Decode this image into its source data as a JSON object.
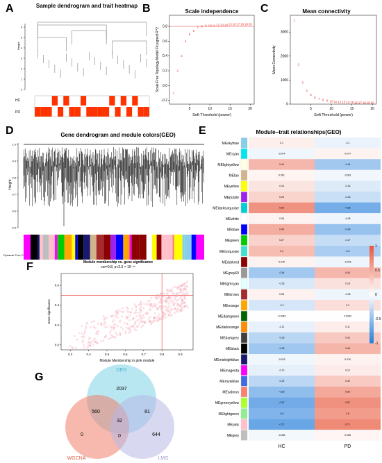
{
  "panels": {
    "A": {
      "label": "A",
      "title": "Sample dendrogram and trait heatmap",
      "ylabel": "Height",
      "yticks": [
        "0",
        "1",
        "2",
        "3",
        "4",
        "5",
        "6"
      ],
      "traits": [
        "HC",
        "PD"
      ],
      "trait_pattern_pd": [
        1,
        1,
        1,
        0,
        1,
        0,
        1,
        1,
        0,
        1,
        1,
        1,
        1,
        0,
        1,
        0,
        1,
        0,
        1,
        1
      ],
      "colors": {
        "trait_on": "#ff3300",
        "trait_off": "#ffffff"
      }
    },
    "B": {
      "label": "B",
      "title": "Scale independence",
      "xlabel": "Soft Threshold (power)",
      "ylabel": "Scale Free Topology Model Fit,signed R^2",
      "cutoff": 0.8
    },
    "C": {
      "label": "C",
      "title": "Mean connectivity",
      "xlabel": "Soft Threshold (power)",
      "ylabel": "Mean Connectivity"
    },
    "D": {
      "label": "D",
      "title": "Gene dendrogram and module colors(GEO)",
      "ylabel": "Height",
      "yticks": [
        "0.5",
        "0.6",
        "0.7",
        "0.8",
        "0.9",
        "1.0"
      ],
      "tree_cut_label": "Dynamic Tree Cut"
    },
    "E": {
      "label": "E",
      "title": "Module−trait relationships(GEO)",
      "columns": [
        "HC",
        "PD"
      ],
      "legend_ticks": [
        "1",
        "0.5",
        "0",
        "-0.5",
        "-1"
      ]
    },
    "F": {
      "label": "F",
      "title": "Module membership vs. gene significance",
      "subtitle": "cor=0.8, p<2.5 × 10⁻¹⁶",
      "xlabel": "Module Membership in pink module",
      "ylabel": "Gene significance"
    },
    "G": {
      "label": "G",
      "sets": [
        "DEG",
        "WGCNA",
        "LMG"
      ],
      "regions": {
        "deg_only": "2037",
        "deg_wgcna": "560",
        "deg_lmg": "81",
        "all_three": "32",
        "wgcna_only": "0",
        "wgcna_lmg": "0",
        "lmg_only": "644"
      },
      "colors": {
        "DEG": "#7fd3e6",
        "WGCNA": "#f0806a",
        "LMG": "#b8b8e6"
      }
    }
  },
  "chart_data": [
    {
      "type": "scatter",
      "panel": "B",
      "title": "Scale independence",
      "xlabel": "Soft Threshold (power)",
      "ylabel": "Scale Free Topology Model Fit,signed R^2",
      "x": [
        1,
        2,
        3,
        4,
        5,
        6,
        7,
        8,
        9,
        10,
        11,
        12,
        13,
        14,
        15,
        16,
        17,
        18,
        19,
        20
      ],
      "y": [
        -0.1,
        0.2,
        0.4,
        0.6,
        0.69,
        0.74,
        0.78,
        0.8,
        0.81,
        0.81,
        0.81,
        0.82,
        0.82,
        0.82,
        0.83,
        0.83,
        0.83,
        0.83,
        0.83,
        0.83
      ],
      "xticks": [
        "5",
        "10",
        "15",
        "20"
      ],
      "yticks": [
        "-0.2",
        "0.0",
        "0.2",
        "0.4",
        "0.6",
        "0.8"
      ],
      "xlim": [
        0,
        21
      ],
      "ylim": [
        -0.25,
        0.95
      ],
      "hline": 0.8,
      "color": "#e8302a"
    },
    {
      "type": "scatter",
      "panel": "C",
      "title": "Mean connectivity",
      "xlabel": "Soft Threshold (power)",
      "ylabel": "Mean Connectivity",
      "x": [
        1,
        2,
        3,
        4,
        5,
        6,
        7,
        8,
        9,
        10,
        11,
        12,
        13,
        14,
        15,
        16,
        17,
        18,
        19,
        20
      ],
      "y": [
        3500,
        1650,
        900,
        560,
        390,
        280,
        210,
        170,
        140,
        115,
        100,
        90,
        82,
        75,
        70,
        65,
        61,
        57,
        54,
        52
      ],
      "xticks": [
        "5",
        "10",
        "15",
        "20"
      ],
      "yticks": [
        "0",
        "1000",
        "2000",
        "3000"
      ],
      "xlim": [
        0,
        21
      ],
      "ylim": [
        0,
        3700
      ],
      "color": "#e8302a"
    },
    {
      "type": "heatmap",
      "panel": "E",
      "title": "Module−trait relationships(GEO)",
      "columns": [
        "HC",
        "PD"
      ],
      "rows": [
        {
          "name": "MEskyblue",
          "color": "#87ceeb",
          "values": [
            0.1,
            -0.1
          ]
        },
        {
          "name": "MEcyan",
          "color": "#00e5ee",
          "values": [
            -0.074,
            0.074
          ]
        },
        {
          "name": "MElightyellow",
          "color": "#ffffe0",
          "values": [
            0.44,
            -0.44
          ]
        },
        {
          "name": "MEtan",
          "color": "#d2b48c",
          "values": [
            0.061,
            -0.061
          ]
        },
        {
          "name": "MEyellow",
          "color": "#ffff00",
          "values": [
            0.16,
            -0.16
          ]
        },
        {
          "name": "MEpurple",
          "color": "#a020f0",
          "values": [
            0.26,
            -0.26
          ]
        },
        {
          "name": "MEdarkturquoise",
          "color": "#00ced1",
          "values": [
            0.66,
            -0.66
          ]
        },
        {
          "name": "MEwhite",
          "color": "#ffffff",
          "values": [
            0.08,
            -0.08
          ]
        },
        {
          "name": "MEblue",
          "color": "#0000ff",
          "values": [
            0.49,
            -0.49
          ]
        },
        {
          "name": "MEgreen",
          "color": "#00cd00",
          "values": [
            0.27,
            -0.27
          ]
        },
        {
          "name": "MEturquoise",
          "color": "#40e0d0",
          "values": [
            0.4,
            -0.4
          ]
        },
        {
          "name": "MEdarkred",
          "color": "#8b0000",
          "values": [
            0.078,
            -0.078
          ]
        },
        {
          "name": "MEgrey60",
          "color": "#999999",
          "values": [
            -0.44,
            0.44
          ]
        },
        {
          "name": "MElightcyan",
          "color": "#e0ffff",
          "values": [
            -0.18,
            0.18
          ]
        },
        {
          "name": "MEbrown",
          "color": "#a52a2a",
          "values": [
            0.08,
            -0.08
          ]
        },
        {
          "name": "MEorange",
          "color": "#ffa500",
          "values": [
            -0.2,
            0.2
          ]
        },
        {
          "name": "MEdarkgreen",
          "color": "#006400",
          "values": [
            -0.0063,
            0.0063
          ]
        },
        {
          "name": "MEdarkorange",
          "color": "#ff8c00",
          "values": [
            -0.11,
            0.11
          ]
        },
        {
          "name": "MEdarkgrey",
          "color": "#404040",
          "values": [
            -0.33,
            0.33
          ]
        },
        {
          "name": "MEblack",
          "color": "#000000",
          "values": [
            -0.45,
            0.45
          ]
        },
        {
          "name": "MEmidnightblue",
          "color": "#191970",
          "values": [
            -0.076,
            0.076
          ]
        },
        {
          "name": "MEmagenta",
          "color": "#ff00ff",
          "values": [
            -0.12,
            0.12
          ]
        },
        {
          "name": "MEroyalblue",
          "color": "#4169e1",
          "values": [
            -0.32,
            0.32
          ]
        },
        {
          "name": "MEsalmon",
          "color": "#fa8072",
          "values": [
            -0.53,
            0.53
          ]
        },
        {
          "name": "MEgreenyellow",
          "color": "#adff2f",
          "values": [
            -0.67,
            0.67
          ]
        },
        {
          "name": "MElightgreen",
          "color": "#90ee90",
          "values": [
            -0.6,
            0.6
          ]
        },
        {
          "name": "MEpink",
          "color": "#ffc0cb",
          "values": [
            -0.71,
            0.71
          ]
        },
        {
          "name": "MEgrey",
          "color": "#bebebe",
          "values": [
            -0.058,
            0.058
          ]
        }
      ],
      "scale": [
        -1,
        1
      ]
    },
    {
      "type": "scatter",
      "panel": "F",
      "title": "Module membership vs. gene significance",
      "xlabel": "Module Membership in pink module",
      "ylabel": "Gene significance",
      "xticks": [
        "0.3",
        "0.4",
        "0.5",
        "0.6",
        "0.7",
        "0.8",
        "0.9"
      ],
      "yticks": [
        "0.0",
        "0.2",
        "0.4",
        "0.6"
      ],
      "xlim": [
        0.25,
        0.97
      ],
      "ylim": [
        -0.05,
        0.72
      ],
      "vline": 0.8,
      "hline": 0.5,
      "color": "#f2a0b0"
    }
  ]
}
